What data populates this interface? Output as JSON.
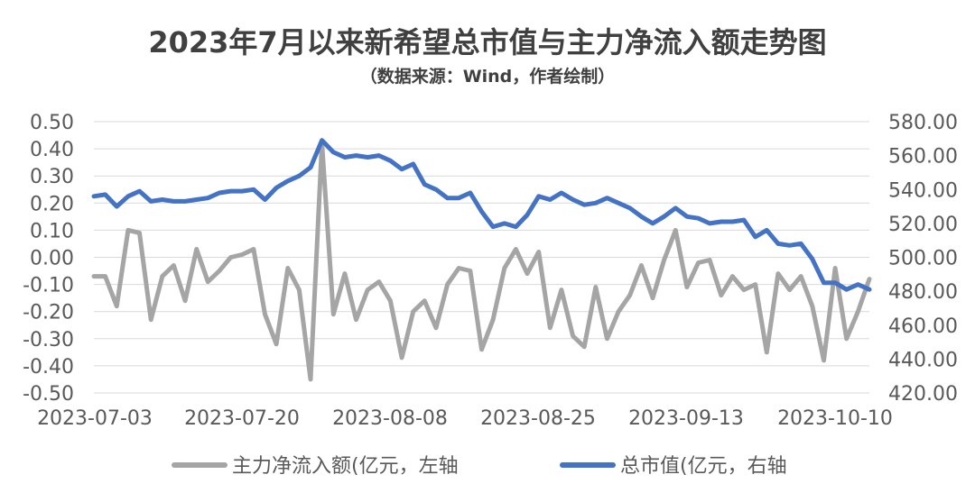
{
  "chart_data": {
    "type": "line",
    "title": "2023年7月以来新希望总市值与主力净流入额走势图",
    "subtitle": "（数据来源：Wind，作者绘制）",
    "x_tick_labels": [
      "2023-07-03",
      "2023-07-20",
      "2023-08-08",
      "2023-08-25",
      "2023-09-13",
      "2023-10-10"
    ],
    "y_left": {
      "ylim": [
        -0.5,
        0.5
      ],
      "step": 0.1,
      "tick_labels": [
        "-0.50",
        "-0.40",
        "-0.30",
        "-0.20",
        "-0.10",
        "0.00",
        "0.10",
        "0.20",
        "0.30",
        "0.40",
        "0.50"
      ]
    },
    "y_right": {
      "ylim": [
        420,
        580
      ],
      "step": 20,
      "tick_labels": [
        "420.00",
        "440.00",
        "460.00",
        "480.00",
        "500.00",
        "520.00",
        "540.00",
        "560.00",
        "580.00"
      ]
    },
    "grid": true,
    "legend_position": "bottom",
    "series": [
      {
        "name": "主力净流入额(亿元，左轴",
        "axis": "left",
        "color": "#a5a5a5",
        "values": [
          -0.07,
          -0.07,
          -0.18,
          0.1,
          0.09,
          -0.23,
          -0.07,
          -0.03,
          -0.16,
          0.03,
          -0.09,
          -0.05,
          0.0,
          0.01,
          0.03,
          -0.21,
          -0.32,
          -0.04,
          -0.12,
          -0.45,
          0.42,
          -0.21,
          -0.06,
          -0.23,
          -0.12,
          -0.09,
          -0.16,
          -0.37,
          -0.2,
          -0.16,
          -0.26,
          -0.1,
          -0.04,
          -0.05,
          -0.34,
          -0.23,
          -0.04,
          0.03,
          -0.06,
          0.02,
          -0.26,
          -0.12,
          -0.29,
          -0.33,
          -0.11,
          -0.3,
          -0.2,
          -0.14,
          -0.03,
          -0.15,
          -0.01,
          0.1,
          -0.11,
          -0.02,
          -0.01,
          -0.14,
          -0.07,
          -0.12,
          -0.1,
          -0.35,
          -0.06,
          -0.12,
          -0.07,
          -0.18,
          -0.38,
          -0.04,
          -0.3,
          -0.2,
          -0.08
        ]
      },
      {
        "name": "总市值(亿元，右轴",
        "axis": "right",
        "color": "#4472c4",
        "values": [
          536,
          537,
          530,
          536,
          539,
          533,
          534,
          533,
          533,
          534,
          535,
          538,
          539,
          539,
          540,
          534,
          541,
          545,
          548,
          553,
          569,
          562,
          559,
          560,
          559,
          560,
          557,
          552,
          555,
          543,
          540,
          535,
          535,
          538,
          527,
          518,
          520,
          518,
          525,
          536,
          534,
          538,
          534,
          531,
          532,
          535,
          532,
          529,
          524,
          520,
          524,
          529,
          524,
          523,
          520,
          521,
          521,
          522,
          512,
          516,
          508,
          507,
          508,
          499,
          485,
          485,
          481,
          484,
          481
        ]
      }
    ]
  }
}
